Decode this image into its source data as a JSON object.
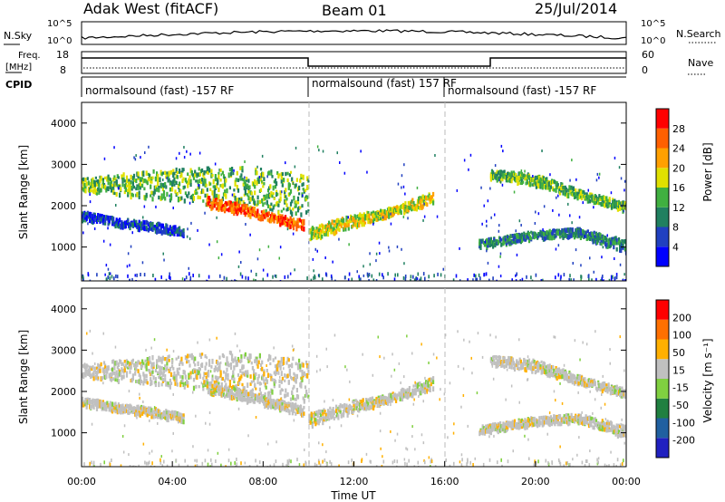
{
  "header": {
    "station": "Adak West (fitACF)",
    "beam": "Beam 01",
    "date": "25/Jul/2014"
  },
  "panel_labels": {
    "nsky": "N.Sky",
    "nsearch": "N.Search",
    "freq_l1": "Freq.",
    "freq_l2": "[MHz]",
    "nave": "Nave",
    "cpid": "CPID",
    "nsky_ticks": [
      "10^5",
      "10^0"
    ],
    "nsearch_ticks": [
      "10^5",
      "10^0"
    ],
    "freq_ticks": [
      "18",
      "8"
    ],
    "nave_ticks": [
      "60",
      "0"
    ]
  },
  "cpid_segments": [
    {
      "label": "normalsound (fast) -157 RF",
      "start_h": 0,
      "end_h": 10
    },
    {
      "label": "normalsound (fast) 157 RF",
      "start_h": 10,
      "end_h": 16
    },
    {
      "label": "normalsound (fast) -157 RF",
      "start_h": 16,
      "end_h": 24
    }
  ],
  "chart_data": [
    {
      "type": "heatmap",
      "name": "power",
      "xlabel": "Time UT",
      "ylabel": "Slant Range [km]",
      "x_ticks": [
        "00:00",
        "04:00",
        "08:00",
        "12:00",
        "16:00",
        "20:00",
        "00:00"
      ],
      "xlim_hours": [
        0,
        24
      ],
      "ylim": [
        180,
        4500
      ],
      "y_ticks": [
        1000,
        2000,
        3000,
        4000
      ],
      "colorbar": {
        "label": "Power [dB]",
        "ticks": [
          "28",
          "24",
          "20",
          "16",
          "12",
          "8",
          "4"
        ],
        "colors": [
          "#0000ff",
          "#2040c0",
          "#208060",
          "#40b040",
          "#e0e000",
          "#ffa000",
          "#ff6000",
          "#ff0000"
        ]
      },
      "bands": [
        {
          "t": [
            0.0,
            10.0
          ],
          "r": [
            [
              2700,
              2400
            ],
            [
              2900,
              2200
            ],
            [
              3000,
              2000
            ],
            [
              2800,
              1800
            ]
          ],
          "level": 3
        },
        {
          "t": [
            5.5,
            9.8
          ],
          "r": [
            [
              2250,
              2000
            ],
            [
              2100,
              1850
            ],
            [
              1850,
              1650
            ],
            [
              1700,
              1450
            ]
          ],
          "level": 6
        },
        {
          "t": [
            10.0,
            15.5
          ],
          "r": [
            [
              1500,
              1200
            ],
            [
              1800,
              1500
            ],
            [
              2000,
              1800
            ],
            [
              2400,
              2100
            ]
          ],
          "level": 4
        },
        {
          "t": [
            18.0,
            24.0
          ],
          "r": [
            [
              2900,
              2700
            ],
            [
              2800,
              2500
            ],
            [
              2400,
              2200
            ],
            [
              2100,
              1900
            ]
          ],
          "level": 3
        },
        {
          "t": [
            0.0,
            4.5
          ],
          "r": [
            [
              1900,
              1700
            ],
            [
              1750,
              1550
            ],
            [
              1650,
              1450
            ],
            [
              1500,
              1300
            ]
          ],
          "level": 1
        },
        {
          "t": [
            17.5,
            24.0
          ],
          "r": [
            [
              1200,
              1000
            ],
            [
              1400,
              1200
            ],
            [
              1500,
              1300
            ],
            [
              1200,
              900
            ]
          ],
          "level": 2
        }
      ]
    },
    {
      "type": "heatmap",
      "name": "velocity",
      "xlabel": "Time UT",
      "ylabel": "Slant Range [km]",
      "x_ticks": [
        "00:00",
        "04:00",
        "08:00",
        "12:00",
        "16:00",
        "20:00",
        "00:00"
      ],
      "xlim_hours": [
        0,
        24
      ],
      "ylim": [
        180,
        4500
      ],
      "y_ticks": [
        1000,
        2000,
        3000,
        4000
      ],
      "colorbar": {
        "label": "Velocity [m s⁻¹]",
        "ticks": [
          "200",
          "100",
          "50",
          "15",
          "-15",
          "-50",
          "-100",
          "-200"
        ],
        "colors": [
          "#2020c0",
          "#2060a0",
          "#208040",
          "#80d040",
          "#c0c0c0",
          "#ffb000",
          "#ff7000",
          "#ff0000"
        ]
      }
    }
  ]
}
